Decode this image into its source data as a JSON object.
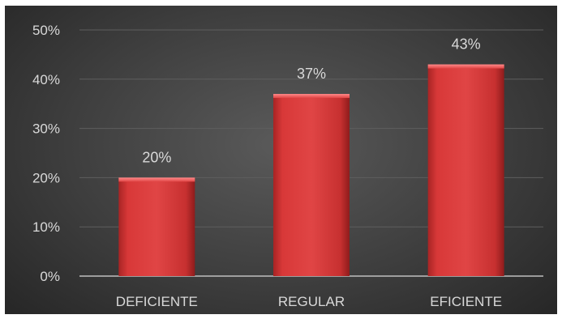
{
  "chart_data": {
    "type": "bar",
    "categories": [
      "DEFICIENTE",
      "REGULAR",
      "EFICIENTE"
    ],
    "values": [
      20,
      37,
      43
    ],
    "data_labels": [
      "20%",
      "37%",
      "43%"
    ],
    "ylim": [
      0,
      50
    ],
    "y_ticks": [
      0,
      10,
      20,
      30,
      40,
      50
    ],
    "y_tick_labels": [
      "0%",
      "10%",
      "20%",
      "30%",
      "40%",
      "50%"
    ],
    "grid": true,
    "bar_color": "#d93c3c",
    "background_color": "#3f3f3f",
    "text_color": "#d9d9d9"
  }
}
